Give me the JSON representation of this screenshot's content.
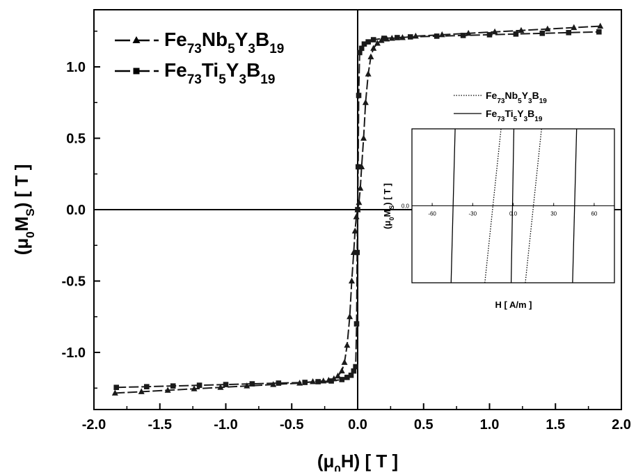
{
  "chart_data": [
    {
      "type": "line",
      "xlabel": {
        "open": "(",
        "mu": "μ",
        "sub": "0",
        "rest": "H) [ T ]"
      },
      "ylabel": {
        "open": "(",
        "mu": "μ",
        "sub": "0",
        "mid": "M",
        "sub2": "S",
        "rest": ") [ T ]"
      },
      "xlim": [
        -2.0,
        2.0
      ],
      "ylim": [
        -1.4,
        1.4
      ],
      "x_ticks": [
        -2.0,
        -1.5,
        -1.0,
        -0.5,
        0.0,
        0.5,
        1.0,
        1.5,
        2.0
      ],
      "x_tick_labels": [
        "-2.0",
        "-1.5",
        "-1.0",
        "-0.5",
        "0.0",
        "0.5",
        "1.0",
        "1.5",
        "2.0"
      ],
      "y_ticks": [
        -1.0,
        -0.5,
        0.0,
        0.5,
        1.0
      ],
      "y_tick_labels": [
        "-1.0",
        "-0.5",
        "0.0",
        "0.5",
        "1.0"
      ],
      "reference_lines": {
        "x": 0,
        "y": 0
      },
      "legend_position": "top-left",
      "series": [
        {
          "name_parts": [
            [
              "Fe",
              ""
            ],
            [
              "73",
              "sub"
            ],
            [
              "Nb",
              ""
            ],
            [
              "5",
              "sub"
            ],
            [
              "Y",
              ""
            ],
            [
              "3",
              "sub"
            ],
            [
              "B",
              ""
            ],
            [
              "19",
              "sub"
            ]
          ],
          "marker": "triangle",
          "color": "#1a1a1a",
          "x": [
            -1.84,
            -1.64,
            -1.44,
            -1.24,
            -1.04,
            -0.84,
            -0.64,
            -0.44,
            -0.34,
            -0.26,
            -0.22,
            -0.18,
            -0.15,
            -0.12,
            -0.1,
            -0.08,
            -0.06,
            -0.045,
            -0.03,
            -0.02,
            -0.01,
            0.0,
            0.01,
            0.02,
            0.03,
            0.045,
            0.06,
            0.08,
            0.1,
            0.12,
            0.15,
            0.18,
            0.22,
            0.26,
            0.34,
            0.44,
            0.64,
            0.84,
            1.04,
            1.24,
            1.44,
            1.64,
            1.84
          ],
          "y": [
            -1.285,
            -1.275,
            -1.265,
            -1.255,
            -1.245,
            -1.235,
            -1.225,
            -1.215,
            -1.205,
            -1.2,
            -1.195,
            -1.185,
            -1.165,
            -1.13,
            -1.07,
            -0.95,
            -0.75,
            -0.5,
            -0.3,
            -0.15,
            -0.05,
            0.0,
            0.05,
            0.15,
            0.3,
            0.5,
            0.75,
            0.95,
            1.07,
            1.13,
            1.165,
            1.185,
            1.195,
            1.2,
            1.205,
            1.215,
            1.225,
            1.235,
            1.245,
            1.255,
            1.265,
            1.275,
            1.285
          ]
        },
        {
          "name_parts": [
            [
              "Fe",
              ""
            ],
            [
              "73",
              "sub"
            ],
            [
              "Ti",
              ""
            ],
            [
              "5",
              "sub"
            ],
            [
              "Y",
              ""
            ],
            [
              "3",
              "sub"
            ],
            [
              "B",
              ""
            ],
            [
              "19",
              "sub"
            ]
          ],
          "marker": "square",
          "color": "#1a1a1a",
          "x": [
            -1.83,
            -1.6,
            -1.4,
            -1.2,
            -1.0,
            -0.8,
            -0.6,
            -0.4,
            -0.3,
            -0.2,
            -0.12,
            -0.08,
            -0.05,
            -0.03,
            -0.015,
            -0.008,
            -0.004,
            0.0,
            0.004,
            0.008,
            0.015,
            0.03,
            0.05,
            0.08,
            0.12,
            0.2,
            0.3,
            0.4,
            0.6,
            0.8,
            1.0,
            1.2,
            1.4,
            1.6,
            1.83
          ],
          "y": [
            -1.245,
            -1.24,
            -1.235,
            -1.23,
            -1.225,
            -1.22,
            -1.215,
            -1.21,
            -1.205,
            -1.2,
            -1.19,
            -1.175,
            -1.16,
            -1.13,
            -1.1,
            -0.8,
            -0.3,
            0.0,
            0.3,
            0.8,
            1.1,
            1.13,
            1.16,
            1.175,
            1.19,
            1.2,
            1.205,
            1.21,
            1.215,
            1.22,
            1.225,
            1.23,
            1.235,
            1.24,
            1.245
          ]
        }
      ]
    },
    {
      "type": "line",
      "inset": true,
      "xlabel": "H  [ A/m ]",
      "ylabel": {
        "open": "(",
        "mu": "μ",
        "sub": "0",
        "mid": "M",
        "sub2": "S",
        "rest": ") [ T ]"
      },
      "xlim": [
        -75,
        75
      ],
      "ylim": [
        -1,
        1
      ],
      "x_ticks": [
        -60,
        -30,
        0,
        30,
        60
      ],
      "x_tick_labels": [
        "-60",
        "-30",
        "0.0",
        "30",
        "60"
      ],
      "y_ticks": [
        0
      ],
      "y_tick_labels": [
        "0.0"
      ],
      "legend_position": "above",
      "series": [
        {
          "name_parts": [
            [
              "Fe",
              ""
            ],
            [
              "73",
              "sub"
            ],
            [
              "Nb",
              ""
            ],
            [
              "5",
              "sub"
            ],
            [
              "Y",
              ""
            ],
            [
              "3",
              "sub"
            ],
            [
              "B",
              ""
            ],
            [
              "19",
              "sub"
            ]
          ],
          "line_style": "dotted",
          "color": "#000000",
          "branches": [
            {
              "x": [
                -21,
                -9
              ],
              "y": [
                -1,
                1
              ]
            },
            {
              "x": [
                9,
                21
              ],
              "y": [
                -1,
                1
              ]
            }
          ]
        },
        {
          "name_parts": [
            [
              "Fe",
              ""
            ],
            [
              "73",
              "sub"
            ],
            [
              "Ti",
              ""
            ],
            [
              "5",
              "sub"
            ],
            [
              "Y",
              ""
            ],
            [
              "3",
              "sub"
            ],
            [
              "B",
              ""
            ],
            [
              "19",
              "sub"
            ]
          ],
          "line_style": "solid",
          "color": "#000000",
          "branches": [
            {
              "x": [
                -46,
                -43
              ],
              "y": [
                -1,
                1
              ]
            },
            {
              "x": [
                -1.5,
                0.5
              ],
              "y": [
                -1,
                1
              ]
            },
            {
              "x": [
                44,
                47
              ],
              "y": [
                -1,
                1
              ]
            }
          ]
        }
      ]
    }
  ]
}
